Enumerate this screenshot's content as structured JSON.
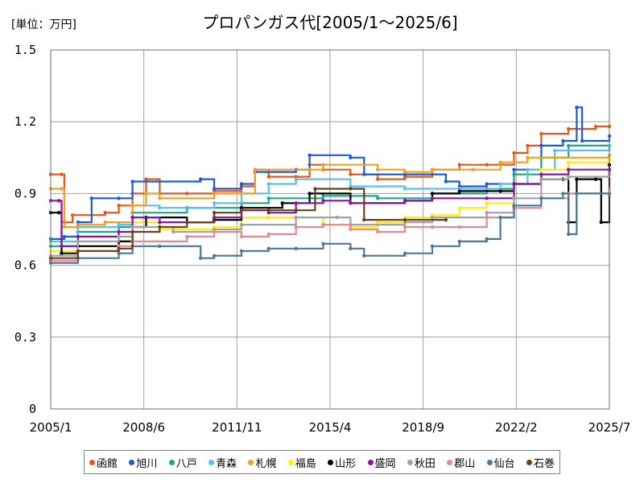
{
  "chart_data": {
    "type": "line",
    "title": "プロパンガス代[2005/1～2025/6]",
    "unit_label": "[単位：万円]",
    "x_ticks": [
      "2005/1",
      "2008/6",
      "2011/11",
      "2015/4",
      "2018/9",
      "2022/2",
      "2025/7"
    ],
    "y_ticks": [
      "0",
      "0.3",
      "0.6",
      "0.9",
      "1.2",
      "1.5"
    ],
    "xlim": [
      2005.0,
      2025.5
    ],
    "ylim": [
      0,
      1.5
    ],
    "grid": true,
    "legend_position": "bottom",
    "series": [
      {
        "name": "函館",
        "color": "#e8561a",
        "points": [
          [
            2005.0,
            0.98
          ],
          [
            2005.4,
            0.98
          ],
          [
            2005.5,
            0.78
          ],
          [
            2005.8,
            0.81
          ],
          [
            2007.0,
            0.82
          ],
          [
            2007.5,
            0.85
          ],
          [
            2008.0,
            0.9
          ],
          [
            2008.5,
            0.96
          ],
          [
            2009.0,
            0.9
          ],
          [
            2010.0,
            0.9
          ],
          [
            2011.0,
            0.91
          ],
          [
            2012.0,
            0.93
          ],
          [
            2012.5,
            1.0
          ],
          [
            2013.0,
            0.97
          ],
          [
            2014.0,
            0.97
          ],
          [
            2014.5,
            1.02
          ],
          [
            2015.0,
            1.0
          ],
          [
            2016.0,
            0.98
          ],
          [
            2017.0,
            0.96
          ],
          [
            2018.0,
            0.97
          ],
          [
            2019.0,
            1.0
          ],
          [
            2020.0,
            1.02
          ],
          [
            2021.0,
            1.02
          ],
          [
            2022.0,
            1.07
          ],
          [
            2022.5,
            1.1
          ],
          [
            2023.0,
            1.15
          ],
          [
            2024.0,
            1.17
          ],
          [
            2025.0,
            1.18
          ],
          [
            2025.5,
            1.18
          ]
        ]
      },
      {
        "name": "旭川",
        "color": "#1a5ad8",
        "points": [
          [
            2005.0,
            0.71
          ],
          [
            2005.5,
            0.72
          ],
          [
            2006.0,
            0.78
          ],
          [
            2006.5,
            0.88
          ],
          [
            2007.5,
            0.88
          ],
          [
            2008.0,
            0.95
          ],
          [
            2010.5,
            0.96
          ],
          [
            2011.0,
            0.92
          ],
          [
            2012.0,
            0.94
          ],
          [
            2012.5,
            0.99
          ],
          [
            2014.0,
            1.0
          ],
          [
            2014.5,
            1.06
          ],
          [
            2016.0,
            1.05
          ],
          [
            2016.5,
            0.98
          ],
          [
            2018.0,
            0.98
          ],
          [
            2019.5,
            0.95
          ],
          [
            2020.0,
            0.93
          ],
          [
            2021.0,
            0.94
          ],
          [
            2022.0,
            1.0
          ],
          [
            2023.0,
            1.1
          ],
          [
            2023.8,
            1.12
          ],
          [
            2024.3,
            1.26
          ],
          [
            2024.5,
            1.12
          ],
          [
            2025.5,
            1.14
          ]
        ]
      },
      {
        "name": "八戸",
        "color": "#1ea882",
        "points": [
          [
            2005.0,
            0.68
          ],
          [
            2006.0,
            0.74
          ],
          [
            2007.5,
            0.76
          ],
          [
            2008.0,
            0.82
          ],
          [
            2010.0,
            0.84
          ],
          [
            2012.0,
            0.86
          ],
          [
            2013.0,
            0.88
          ],
          [
            2015.0,
            0.89
          ],
          [
            2017.0,
            0.88
          ],
          [
            2019.0,
            0.9
          ],
          [
            2021.0,
            0.92
          ],
          [
            2022.0,
            0.98
          ],
          [
            2023.0,
            1.05
          ],
          [
            2024.0,
            1.1
          ],
          [
            2025.5,
            1.1
          ]
        ]
      },
      {
        "name": "青森",
        "color": "#58c0f0",
        "points": [
          [
            2005.0,
            0.7
          ],
          [
            2006.0,
            0.76
          ],
          [
            2007.5,
            0.77
          ],
          [
            2008.0,
            0.85
          ],
          [
            2009.0,
            0.84
          ],
          [
            2011.0,
            0.86
          ],
          [
            2012.0,
            0.9
          ],
          [
            2013.0,
            0.94
          ],
          [
            2014.0,
            0.96
          ],
          [
            2016.0,
            0.93
          ],
          [
            2018.0,
            0.92
          ],
          [
            2020.0,
            0.92
          ],
          [
            2021.5,
            0.94
          ],
          [
            2022.5,
            1.0
          ],
          [
            2023.5,
            1.08
          ],
          [
            2025.5,
            1.1
          ]
        ]
      },
      {
        "name": "札幌",
        "color": "#f0a020",
        "points": [
          [
            2005.0,
            0.92
          ],
          [
            2005.4,
            0.92
          ],
          [
            2005.5,
            0.76
          ],
          [
            2006.0,
            0.77
          ],
          [
            2007.0,
            0.78
          ],
          [
            2008.0,
            0.85
          ],
          [
            2008.5,
            0.9
          ],
          [
            2009.0,
            0.88
          ],
          [
            2011.0,
            0.9
          ],
          [
            2012.5,
            1.0
          ],
          [
            2014.5,
            1.0
          ],
          [
            2015.0,
            1.02
          ],
          [
            2017.0,
            1.0
          ],
          [
            2018.0,
            0.99
          ],
          [
            2019.0,
            1.0
          ],
          [
            2020.5,
            1.0
          ],
          [
            2021.5,
            1.03
          ],
          [
            2022.5,
            1.05
          ],
          [
            2023.5,
            1.05
          ],
          [
            2025.5,
            1.06
          ]
        ]
      },
      {
        "name": "福島",
        "color": "#fff000",
        "points": [
          [
            2005.0,
            0.66
          ],
          [
            2006.0,
            0.68
          ],
          [
            2007.5,
            0.7
          ],
          [
            2008.0,
            0.78
          ],
          [
            2009.0,
            0.75
          ],
          [
            2011.0,
            0.76
          ],
          [
            2012.0,
            0.8
          ],
          [
            2013.0,
            0.8
          ],
          [
            2014.0,
            0.8
          ],
          [
            2015.0,
            0.77
          ],
          [
            2016.0,
            0.76
          ],
          [
            2017.0,
            0.78
          ],
          [
            2018.0,
            0.8
          ],
          [
            2019.0,
            0.81
          ],
          [
            2020.0,
            0.84
          ],
          [
            2021.0,
            0.86
          ],
          [
            2022.0,
            0.94
          ],
          [
            2023.0,
            1.0
          ],
          [
            2024.0,
            1.03
          ],
          [
            2025.5,
            1.04
          ]
        ]
      },
      {
        "name": "山形",
        "color": "#000000",
        "points": [
          [
            2005.0,
            0.82
          ],
          [
            2005.3,
            0.82
          ],
          [
            2005.4,
            0.65
          ],
          [
            2006.0,
            0.68
          ],
          [
            2007.5,
            0.7
          ],
          [
            2008.0,
            0.76
          ],
          [
            2008.5,
            0.8
          ],
          [
            2010.0,
            0.78
          ],
          [
            2011.0,
            0.79
          ],
          [
            2012.0,
            0.84
          ],
          [
            2013.5,
            0.86
          ],
          [
            2014.5,
            0.9
          ],
          [
            2016.0,
            0.86
          ],
          [
            2018.0,
            0.87
          ],
          [
            2019.0,
            0.9
          ],
          [
            2020.0,
            0.91
          ],
          [
            2021.5,
            0.91
          ],
          [
            2022.0,
            0.94
          ],
          [
            2023.0,
            0.96
          ],
          [
            2023.8,
            0.96
          ],
          [
            2024.0,
            0.78
          ],
          [
            2024.3,
            0.96
          ],
          [
            2025.0,
            0.96
          ],
          [
            2025.2,
            0.78
          ],
          [
            2025.5,
            1.02
          ]
        ]
      },
      {
        "name": "盛岡",
        "color": "#8a12a8",
        "points": [
          [
            2005.0,
            0.87
          ],
          [
            2005.3,
            0.87
          ],
          [
            2005.4,
            0.68
          ],
          [
            2006.0,
            0.72
          ],
          [
            2007.5,
            0.74
          ],
          [
            2008.0,
            0.8
          ],
          [
            2009.0,
            0.78
          ],
          [
            2011.0,
            0.8
          ],
          [
            2012.0,
            0.83
          ],
          [
            2013.0,
            0.82
          ],
          [
            2014.0,
            0.86
          ],
          [
            2015.0,
            0.87
          ],
          [
            2016.0,
            0.86
          ],
          [
            2018.0,
            0.87
          ],
          [
            2019.0,
            0.88
          ],
          [
            2021.0,
            0.88
          ],
          [
            2022.0,
            0.94
          ],
          [
            2023.0,
            0.98
          ],
          [
            2024.0,
            1.0
          ],
          [
            2025.5,
            1.0
          ]
        ]
      },
      {
        "name": "秋田",
        "color": "#a0a0a8",
        "points": [
          [
            2005.0,
            0.64
          ],
          [
            2006.0,
            0.7
          ],
          [
            2007.5,
            0.72
          ],
          [
            2008.0,
            0.76
          ],
          [
            2009.5,
            0.74
          ],
          [
            2011.0,
            0.75
          ],
          [
            2012.0,
            0.77
          ],
          [
            2014.0,
            0.8
          ],
          [
            2015.5,
            0.8
          ],
          [
            2016.0,
            0.77
          ],
          [
            2018.0,
            0.78
          ],
          [
            2019.0,
            0.8
          ],
          [
            2021.0,
            0.82
          ],
          [
            2022.0,
            0.88
          ],
          [
            2023.0,
            0.96
          ],
          [
            2024.0,
            0.97
          ],
          [
            2025.5,
            0.98
          ]
        ]
      },
      {
        "name": "郡山",
        "color": "#e88890",
        "points": [
          [
            2005.0,
            0.62
          ],
          [
            2006.0,
            0.66
          ],
          [
            2007.5,
            0.68
          ],
          [
            2008.0,
            0.7
          ],
          [
            2010.0,
            0.72
          ],
          [
            2011.0,
            0.74
          ],
          [
            2012.0,
            0.72
          ],
          [
            2013.0,
            0.73
          ],
          [
            2014.0,
            0.76
          ],
          [
            2015.0,
            0.77
          ],
          [
            2016.0,
            0.75
          ],
          [
            2017.0,
            0.74
          ],
          [
            2018.0,
            0.76
          ],
          [
            2019.0,
            0.76
          ],
          [
            2020.0,
            0.76
          ],
          [
            2021.0,
            0.8
          ],
          [
            2022.0,
            0.84
          ],
          [
            2023.0,
            0.88
          ],
          [
            2024.0,
            0.9
          ],
          [
            2025.5,
            0.92
          ]
        ]
      },
      {
        "name": "仙台",
        "color": "#4a7898",
        "points": [
          [
            2005.0,
            0.61
          ],
          [
            2006.0,
            0.63
          ],
          [
            2007.5,
            0.65
          ],
          [
            2008.0,
            0.68
          ],
          [
            2009.0,
            0.68
          ],
          [
            2010.5,
            0.63
          ],
          [
            2011.0,
            0.64
          ],
          [
            2012.0,
            0.66
          ],
          [
            2013.0,
            0.67
          ],
          [
            2014.0,
            0.67
          ],
          [
            2015.0,
            0.69
          ],
          [
            2016.0,
            0.67
          ],
          [
            2016.5,
            0.64
          ],
          [
            2018.0,
            0.65
          ],
          [
            2019.0,
            0.68
          ],
          [
            2020.0,
            0.7
          ],
          [
            2021.0,
            0.71
          ],
          [
            2021.5,
            0.8
          ],
          [
            2022.0,
            0.85
          ],
          [
            2023.0,
            0.88
          ],
          [
            2023.8,
            0.9
          ],
          [
            2024.0,
            0.73
          ],
          [
            2024.3,
            0.9
          ],
          [
            2025.5,
            0.9
          ]
        ]
      },
      {
        "name": "石巻",
        "color": "#6a4020",
        "points": [
          [
            2005.0,
            0.63
          ],
          [
            2006.0,
            0.66
          ],
          [
            2007.5,
            0.67
          ],
          [
            2008.0,
            0.74
          ],
          [
            2009.0,
            0.76
          ],
          [
            2010.0,
            0.78
          ],
          [
            2011.0,
            0.82
          ],
          [
            2012.0,
            0.83
          ],
          [
            2013.0,
            0.83
          ],
          [
            2014.0,
            0.83
          ],
          [
            2014.7,
            0.92
          ],
          [
            2016.0,
            0.92
          ],
          [
            2016.5,
            0.79
          ],
          [
            2018.0,
            0.79
          ],
          [
            2019.5,
            0.79
          ]
        ]
      }
    ]
  }
}
